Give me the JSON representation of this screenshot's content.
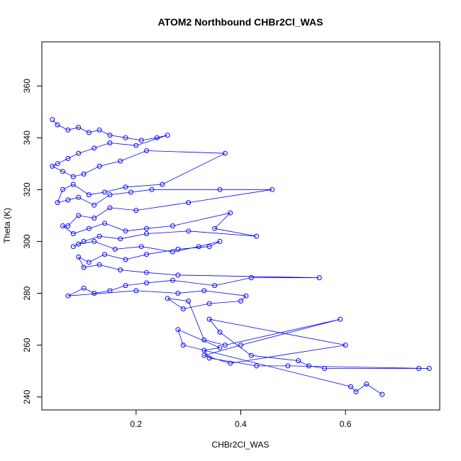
{
  "chart_data": {
    "type": "line",
    "title": "ATOM2 Northbound CHBr2Cl_WAS",
    "xlabel": "CHBr2Cl_WAS",
    "ylabel": "Theta (K)",
    "xlim": [
      0.02,
      0.78
    ],
    "ylim": [
      235,
      377
    ],
    "xticks": [
      0.2,
      0.4,
      0.6
    ],
    "xtick_labels": [
      "0.2",
      "0.4",
      "0.6"
    ],
    "yticks": [
      240,
      260,
      280,
      300,
      320,
      340,
      360
    ],
    "ytick_labels": [
      "240",
      "260",
      "280",
      "300",
      "320",
      "340",
      "360"
    ],
    "grid": false,
    "legend": "none",
    "marker": "open-circle",
    "series_color": "#0000ff",
    "series": [
      {
        "x": [
          0.04,
          0.05,
          0.07,
          0.09,
          0.11,
          0.13,
          0.15,
          0.18,
          0.21,
          0.24,
          0.26,
          0.2,
          0.15,
          0.12,
          0.09,
          0.07,
          0.05,
          0.04,
          0.06,
          0.08,
          0.1,
          0.13,
          0.17,
          0.22,
          0.37,
          0.25,
          0.18,
          0.14,
          0.11,
          0.08,
          0.06,
          0.05,
          0.07,
          0.09,
          0.12,
          0.15,
          0.19,
          0.23,
          0.36,
          0.46,
          0.3,
          0.2,
          0.15,
          0.12,
          0.09,
          0.07,
          0.06,
          0.08,
          0.11,
          0.14,
          0.18,
          0.22,
          0.27,
          0.38,
          0.35,
          0.43,
          0.3,
          0.22,
          0.17,
          0.13,
          0.1,
          0.08,
          0.09,
          0.12,
          0.16,
          0.21,
          0.27,
          0.32,
          0.36,
          0.34,
          0.28,
          0.22,
          0.18,
          0.14,
          0.11,
          0.09,
          0.1,
          0.13,
          0.17,
          0.22,
          0.28,
          0.55,
          0.42,
          0.35,
          0.27,
          0.22,
          0.18,
          0.15,
          0.12,
          0.1,
          0.07,
          0.2,
          0.28,
          0.33,
          0.41,
          0.4,
          0.34,
          0.29,
          0.26,
          0.3,
          0.33,
          0.37,
          0.59,
          0.4,
          0.33,
          0.38,
          0.6,
          0.34,
          0.36,
          0.42,
          0.51,
          0.53,
          0.56,
          0.74,
          0.76,
          0.49,
          0.43,
          0.34,
          0.33,
          0.36,
          0.28,
          0.29,
          0.61,
          0.62,
          0.64,
          0.67
        ],
        "y": [
          347,
          345,
          343,
          344,
          342,
          343,
          341,
          340,
          339,
          340,
          341,
          337,
          338,
          336,
          334,
          332,
          330,
          329,
          327,
          325,
          326,
          329,
          331,
          335,
          334,
          322,
          321,
          319,
          318,
          322,
          320,
          315,
          316,
          317,
          314,
          318,
          319,
          320,
          320,
          320,
          315,
          312,
          313,
          309,
          310,
          306,
          306,
          303,
          305,
          307,
          304,
          305,
          306,
          311,
          305,
          302,
          304,
          303,
          301,
          302,
          300,
          298,
          299,
          300,
          297,
          298,
          296,
          298,
          300,
          298,
          297,
          295,
          293,
          295,
          292,
          294,
          290,
          291,
          289,
          288,
          287,
          286,
          286,
          283,
          285,
          284,
          283,
          281,
          280,
          282,
          279,
          281,
          280,
          281,
          279,
          277,
          276,
          274,
          278,
          277,
          262,
          260,
          270,
          260,
          256,
          253,
          260,
          270,
          265,
          256,
          254,
          252,
          251,
          251,
          251,
          252,
          252,
          255,
          258,
          259,
          266,
          260,
          244,
          242,
          245,
          241
        ]
      }
    ]
  }
}
